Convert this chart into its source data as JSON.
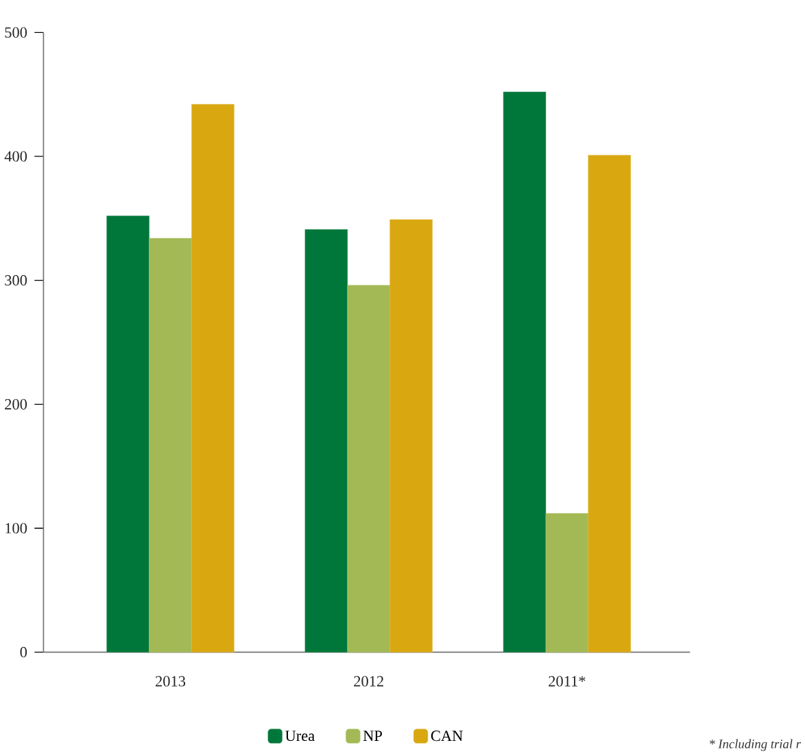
{
  "chart_data": {
    "type": "bar",
    "categories": [
      "2013",
      "2012",
      "2011*"
    ],
    "series": [
      {
        "name": "Urea",
        "color": "#00773a",
        "values": [
          352,
          341,
          452
        ]
      },
      {
        "name": "NP",
        "color": "#a3b955",
        "values": [
          334,
          296,
          112
        ]
      },
      {
        "name": "CAN",
        "color": "#d9a710",
        "values": [
          442,
          349,
          401
        ]
      }
    ],
    "ylim": [
      0,
      500
    ],
    "yticks": [
      0,
      100,
      200,
      300,
      400,
      500
    ],
    "legend": "bottom",
    "annotations": [
      "* Including trial r"
    ]
  }
}
